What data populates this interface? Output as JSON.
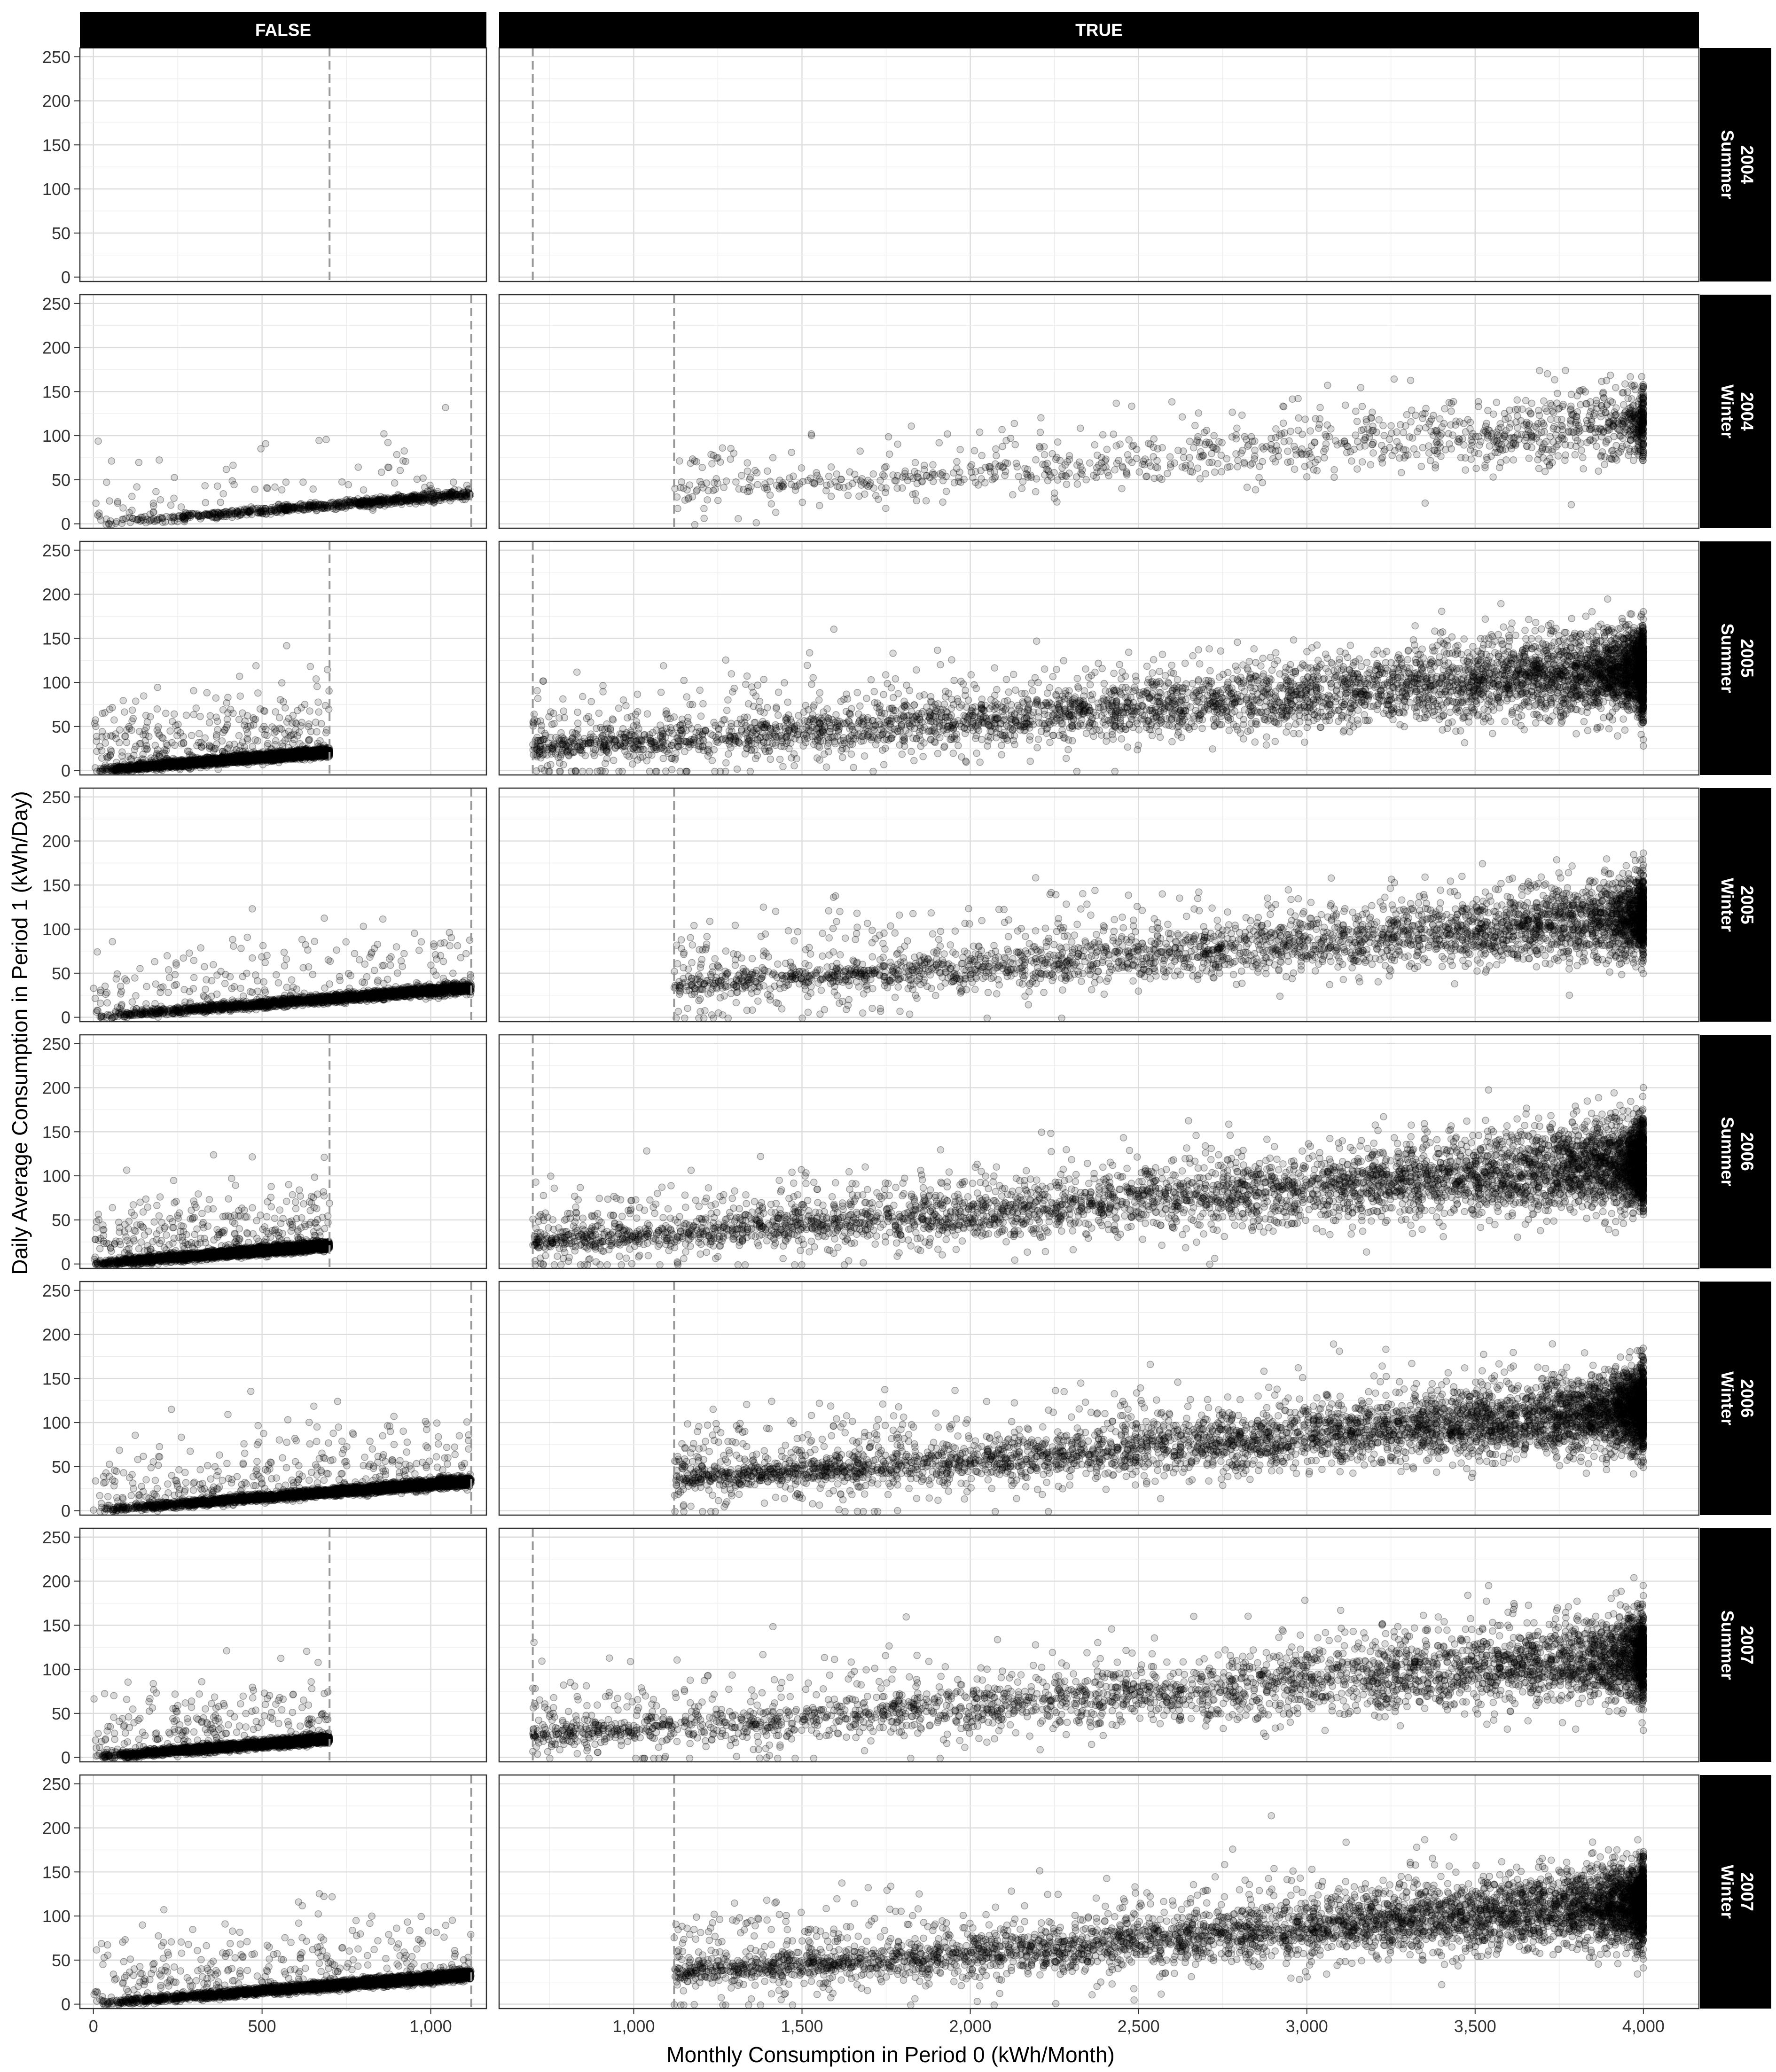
{
  "chart_data": {
    "type": "scatter",
    "facet_layout": "grid",
    "title": "",
    "xlabel": "Monthly Consumption in Period 0 (kWh/Month)",
    "ylabel": "Daily Average Consumption in Period 1 (kWh/Day)",
    "column_facets": [
      {
        "label": "FALSE",
        "xlim": [
          -40,
          1165
        ],
        "xticks": [
          0,
          500,
          1000
        ],
        "xtick_labels": [
          "0",
          "500",
          "1,000"
        ]
      },
      {
        "label": "TRUE",
        "xlim": [
          600,
          4165
        ],
        "xticks": [
          1000,
          1500,
          2000,
          2500,
          3000,
          3500,
          4000
        ],
        "xtick_labels": [
          "1,000",
          "1,500",
          "2,000",
          "2,500",
          "3,000",
          "3,500",
          "4,000"
        ]
      }
    ],
    "row_facets": [
      {
        "year": "2004",
        "season": "Summer",
        "threshold": 700,
        "density": 0
      },
      {
        "year": "2004",
        "season": "Winter",
        "threshold": 1120,
        "density": 0.25
      },
      {
        "year": "2005",
        "season": "Summer",
        "threshold": 700,
        "density": 1.0
      },
      {
        "year": "2005",
        "season": "Winter",
        "threshold": 1120,
        "density": 0.7
      },
      {
        "year": "2006",
        "season": "Summer",
        "threshold": 700,
        "density": 1.0
      },
      {
        "year": "2006",
        "season": "Winter",
        "threshold": 1120,
        "density": 1.0
      },
      {
        "year": "2007",
        "season": "Summer",
        "threshold": 700,
        "density": 0.75
      },
      {
        "year": "2007",
        "season": "Winter",
        "threshold": 1120,
        "density": 1.0
      }
    ],
    "ylim": [
      -5,
      260
    ],
    "yticks": [
      0,
      50,
      100,
      150,
      200,
      250
    ],
    "ytick_labels": [
      "0",
      "50",
      "100",
      "150",
      "200",
      "250"
    ],
    "grid": true,
    "point_color": "#000000",
    "point_opacity": 0.15,
    "reference_line_style": "dashed",
    "trend": {
      "false_slope_per_kwh": 0.03,
      "true_points": [
        [
          1120,
          35
        ],
        [
          1500,
          44
        ],
        [
          2000,
          55
        ],
        [
          2500,
          70
        ],
        [
          3000,
          85
        ],
        [
          3500,
          100
        ],
        [
          4000,
          115
        ]
      ]
    },
    "colors": {
      "strip_background": "#000000",
      "strip_text": "#ffffff",
      "panel_border": "#333333",
      "grid_major": "#dcdcdc",
      "grid_minor": "#ededed",
      "reference_line": "#999999"
    }
  }
}
